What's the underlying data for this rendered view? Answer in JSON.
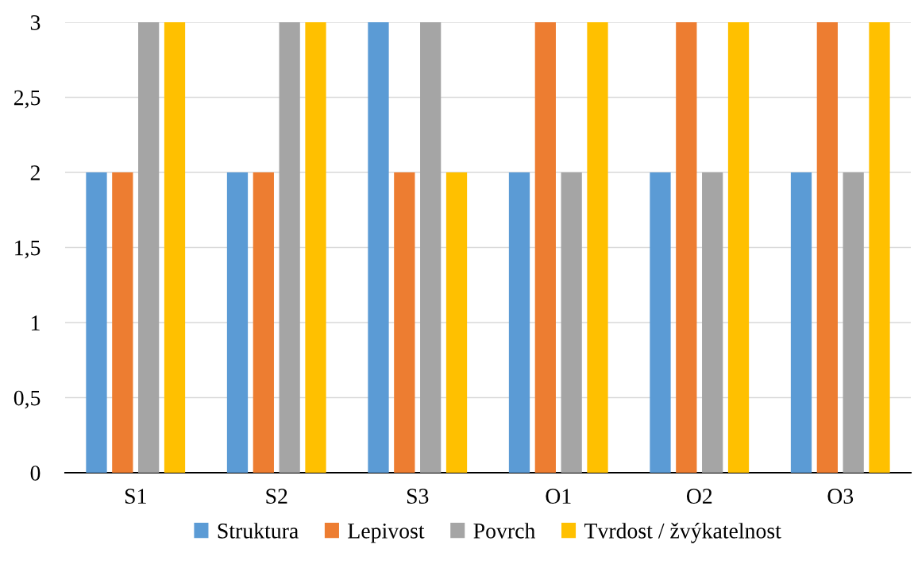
{
  "chart_data": {
    "type": "bar",
    "categories": [
      "S1",
      "S2",
      "S3",
      "O1",
      "O2",
      "O3"
    ],
    "series": [
      {
        "name": "Struktura",
        "color": "#5b9bd5",
        "values": [
          2,
          2,
          3,
          2,
          2,
          2
        ]
      },
      {
        "name": "Lepivost",
        "color": "#ed7d31",
        "values": [
          2,
          2,
          2,
          3,
          3,
          3
        ]
      },
      {
        "name": "Povrch",
        "color": "#a5a5a5",
        "values": [
          3,
          3,
          3,
          2,
          2,
          2
        ]
      },
      {
        "name": "Tvrdost / žvýkatelnost",
        "color": "#ffc000",
        "values": [
          3,
          3,
          2,
          3,
          3,
          3
        ]
      }
    ],
    "ylim": [
      0,
      3
    ],
    "yticks": [
      0,
      {
        "value": 0.5,
        "label": "0,5"
      },
      1,
      {
        "value": 1.5,
        "label": "1,5"
      },
      2,
      {
        "value": 2.5,
        "label": "2,5"
      },
      3
    ],
    "grid": "y",
    "legend": "bottom"
  }
}
